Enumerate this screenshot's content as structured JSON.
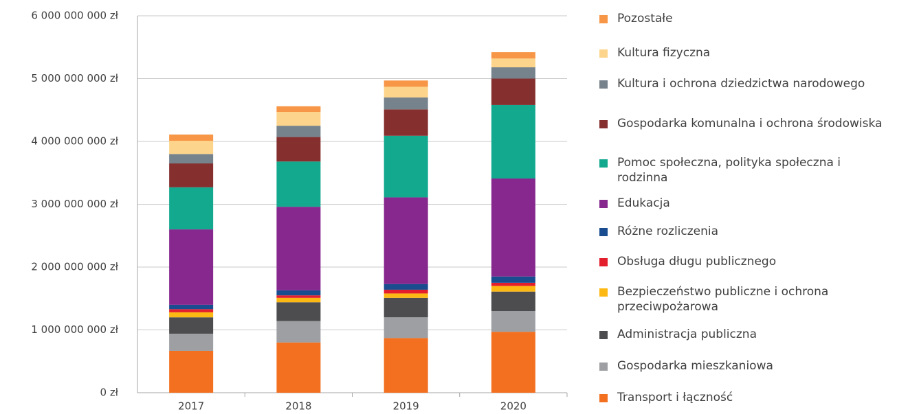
{
  "chart_data": {
    "type": "stacked_bar",
    "categories": [
      "2017",
      "2018",
      "2019",
      "2020"
    ],
    "ylim": [
      0,
      6000000000
    ],
    "yticks": [
      {
        "value": 0,
        "label": "0 zł"
      },
      {
        "value": 1000000000,
        "label": "1 000 000 000 zł"
      },
      {
        "value": 2000000000,
        "label": "2 000 000 000 zł"
      },
      {
        "value": 3000000000,
        "label": "3 000 000 000 zł"
      },
      {
        "value": 4000000000,
        "label": "4 000 000 000 zł"
      },
      {
        "value": 5000000000,
        "label": "5 000 000 000 zł"
      },
      {
        "value": 6000000000,
        "label": "6 000 000 000 zł"
      }
    ],
    "grid": true,
    "legend": "right",
    "series": [
      {
        "name": "Transport i łączność",
        "color": "#f37021",
        "values": [
          667000000,
          800000000,
          870000000,
          970000000
        ]
      },
      {
        "name": "Gospodarka mieszkaniowa",
        "color": "#9d9fa2",
        "values": [
          273000000,
          340000000,
          330000000,
          330000000
        ]
      },
      {
        "name": "Administracja publiczna",
        "color": "#4d4d4f",
        "values": [
          260000000,
          300000000,
          310000000,
          310000000
        ]
      },
      {
        "name": "Bezpieczeństwo publiczne i ochrona przeciwpożarowa",
        "color": "#fdb913",
        "values": [
          80000000,
          70000000,
          70000000,
          90000000
        ]
      },
      {
        "name": "Obsługa długu publicznego",
        "color": "#e31e2d",
        "values": [
          50000000,
          40000000,
          60000000,
          50000000
        ]
      },
      {
        "name": "Różne rozliczenia",
        "color": "#1a4d8f",
        "values": [
          70000000,
          80000000,
          90000000,
          100000000
        ]
      },
      {
        "name": "Edukacja",
        "color": "#86288e",
        "values": [
          1200000000,
          1330000000,
          1380000000,
          1560000000
        ]
      },
      {
        "name": "Pomoc społeczna, polityka społeczna i rodzinna",
        "color": "#13a98e",
        "values": [
          670000000,
          720000000,
          980000000,
          1170000000
        ]
      },
      {
        "name": "Gospodarka komunalna i ochrona środowiska",
        "color": "#85302f",
        "values": [
          380000000,
          390000000,
          420000000,
          420000000
        ]
      },
      {
        "name": "Kultura i ochrona dziedzictwa narodowego",
        "color": "#76828c",
        "values": [
          150000000,
          180000000,
          190000000,
          180000000
        ]
      },
      {
        "name": "Kultura fizyczna",
        "color": "#fdd48b",
        "values": [
          210000000,
          220000000,
          170000000,
          140000000
        ]
      },
      {
        "name": "Pozostałe",
        "color": "#f79646",
        "values": [
          100000000,
          90000000,
          100000000,
          100000000
        ]
      }
    ]
  }
}
